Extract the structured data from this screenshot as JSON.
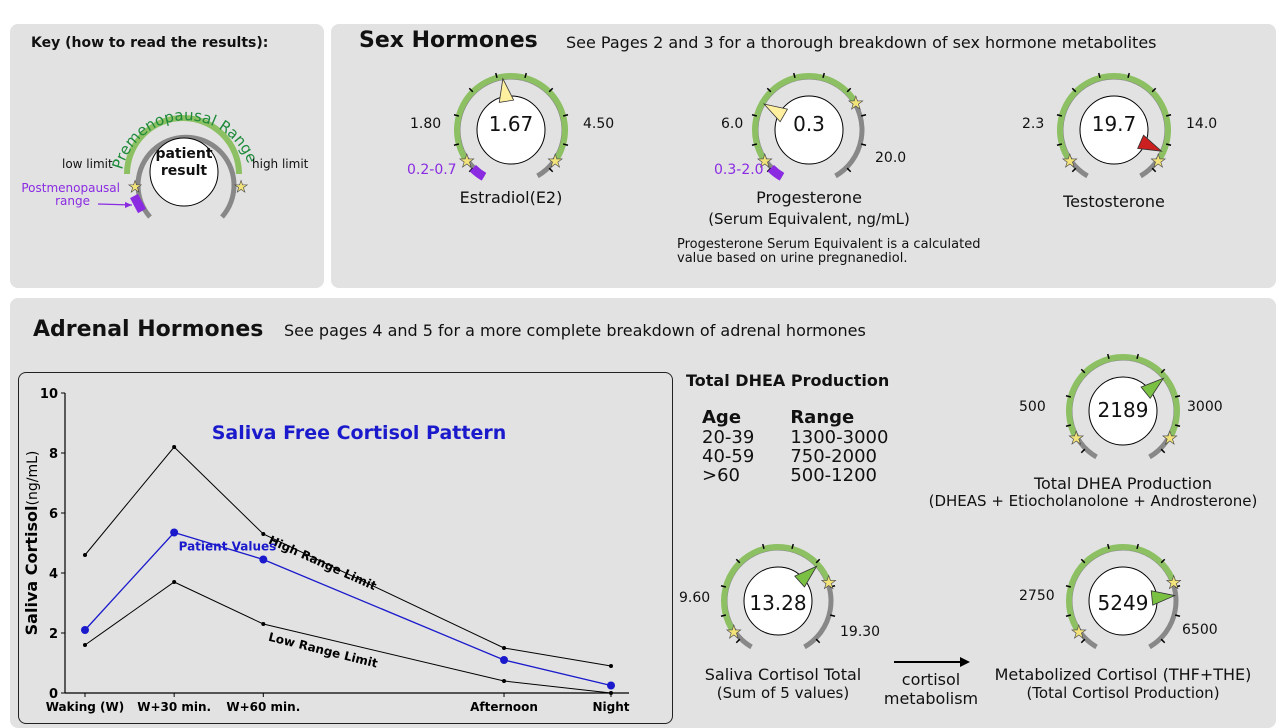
{
  "colors": {
    "panel_bg": "#e2e2e2",
    "range_green": "#8cc063",
    "premeno_text": "#1e8a3a",
    "postmeno_purple": "#8a2be2",
    "needle_yellow": "#fff0a0",
    "needle_green": "#7ac043",
    "needle_red": "#cc2020",
    "series_blue": "#1a1acc"
  },
  "key": {
    "title": "Key (how to read the results):",
    "arc_label": "Premenopausal Range",
    "center_line1": "patient",
    "center_line2": "result",
    "low_limit": "low limit",
    "high_limit": "high limit",
    "postmeno_line1": "Postmenopausal",
    "postmeno_line2": "range"
  },
  "sex_hormones": {
    "title": "Sex Hormones",
    "subtitle": "See Pages 2 and 3 for a thorough breakdown of sex hormone metabolites",
    "estradiol": {
      "value": "1.67",
      "low": "1.80",
      "high": "4.50",
      "postmeno": "0.2-0.7",
      "label": "Estradiol(E2)",
      "fraction": 0.47
    },
    "progesterone": {
      "value": "0.3",
      "low": "6.0",
      "high": "20.0",
      "postmeno": "0.3-2.0",
      "label": "Progesterone",
      "label2": "(Serum Equivalent, ng/mL)",
      "fraction": 0.3,
      "note1": "Progesterone Serum Equivalent is a calculated",
      "note2": "value based on urine pregnanediol."
    },
    "testosterone": {
      "value": "19.7",
      "low": "2.3",
      "high": "14.0",
      "label": "Testosterone",
      "fraction": 0.88
    }
  },
  "adrenal": {
    "title": "Adrenal Hormones",
    "subtitle": "See pages 4 and 5 for a more complete breakdown of adrenal hormones",
    "dhea_table": {
      "title": "Total DHEA Production",
      "col_age": "Age",
      "col_range": "Range",
      "rows": [
        {
          "age": "20-39",
          "range": "1300-3000"
        },
        {
          "age": "40-59",
          "range": "750-2000"
        },
        {
          "age": ">60",
          "range": "500-1200"
        }
      ]
    },
    "dhea_gauge": {
      "value": "2189",
      "low": "500",
      "high": "3000",
      "label1": "Total DHEA Production",
      "label2": "(DHEAS + Etiocholanolone + Androsterone)",
      "fraction": 0.67
    },
    "saliva_gauge": {
      "value": "13.28",
      "low": "9.60",
      "high": "19.30",
      "label1": "Saliva Cortisol Total",
      "label2": "(Sum of 5 values)",
      "fraction": 0.66
    },
    "metab_gauge": {
      "value": "5249",
      "low": "2750",
      "high": "6500",
      "label1": "Metabolized Cortisol (THF+THE)",
      "label2": "(Total Cortisol Production)",
      "fraction": 0.78
    },
    "arrow_label1": "cortisol",
    "arrow_label2": "metabolism"
  },
  "chart_data": {
    "type": "line",
    "title": "Saliva Free Cortisol Pattern",
    "ylabel_bold": "Saliva Cortisol",
    "ylabel_unit": "(ng/mL)",
    "ylim": [
      0,
      10
    ],
    "yticks": [
      "0",
      "2",
      "4",
      "6",
      "8",
      "10"
    ],
    "categories": [
      "Waking (W)",
      "W+30 min.",
      "W+60 min.",
      "Afternoon",
      "Night"
    ],
    "x": [
      0,
      1,
      2,
      4.7,
      5.9
    ],
    "series": [
      {
        "name": "High Range Limit",
        "values": [
          4.6,
          8.2,
          5.3,
          1.5,
          0.9
        ]
      },
      {
        "name": "Patient Values",
        "values": [
          2.1,
          5.35,
          4.45,
          1.1,
          0.25
        ]
      },
      {
        "name": "Low Range Limit",
        "values": [
          1.6,
          3.7,
          2.3,
          0.4,
          0.0
        ]
      }
    ]
  }
}
